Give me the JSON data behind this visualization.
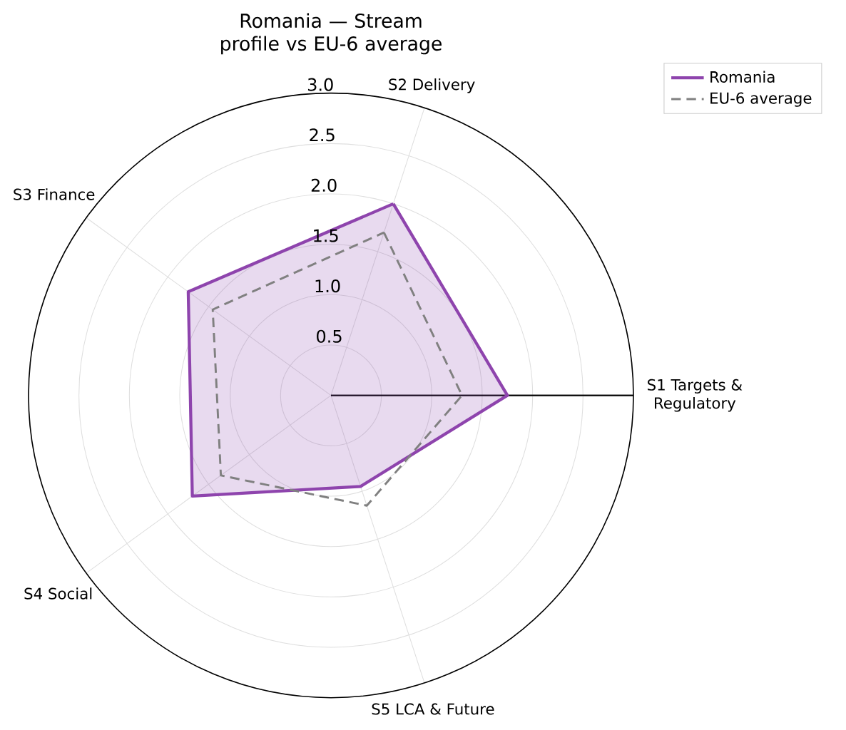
{
  "chart_data": {
    "type": "radar",
    "title": "Romania — Stream profile vs EU-6 average",
    "categories": [
      "S2 Delivery",
      "S1 Targets & Regulatory",
      "S5 LCA & Future",
      "S4 Social",
      "S3 Finance"
    ],
    "series": [
      {
        "name": "Romania",
        "color": "#8e44ad",
        "values": [
          2.0,
          1.75,
          0.95,
          1.7,
          1.75
        ],
        "line_style": "solid"
      },
      {
        "name": "EU-6 average",
        "color": "#808080",
        "values": [
          1.7,
          1.3,
          1.15,
          1.35,
          1.45
        ],
        "line_style": "dashed"
      }
    ],
    "ylim": [
      0,
      3.0
    ],
    "yticks": [
      0.5,
      {
        "value": 1,
        "label": "1.0"
      },
      1.5,
      {
        "value": 2,
        "label": "2.0"
      },
      2.5,
      {
        "value": 3,
        "label": "3.0"
      }
    ],
    "grid": true,
    "legend": "top right",
    "marker": "none"
  }
}
